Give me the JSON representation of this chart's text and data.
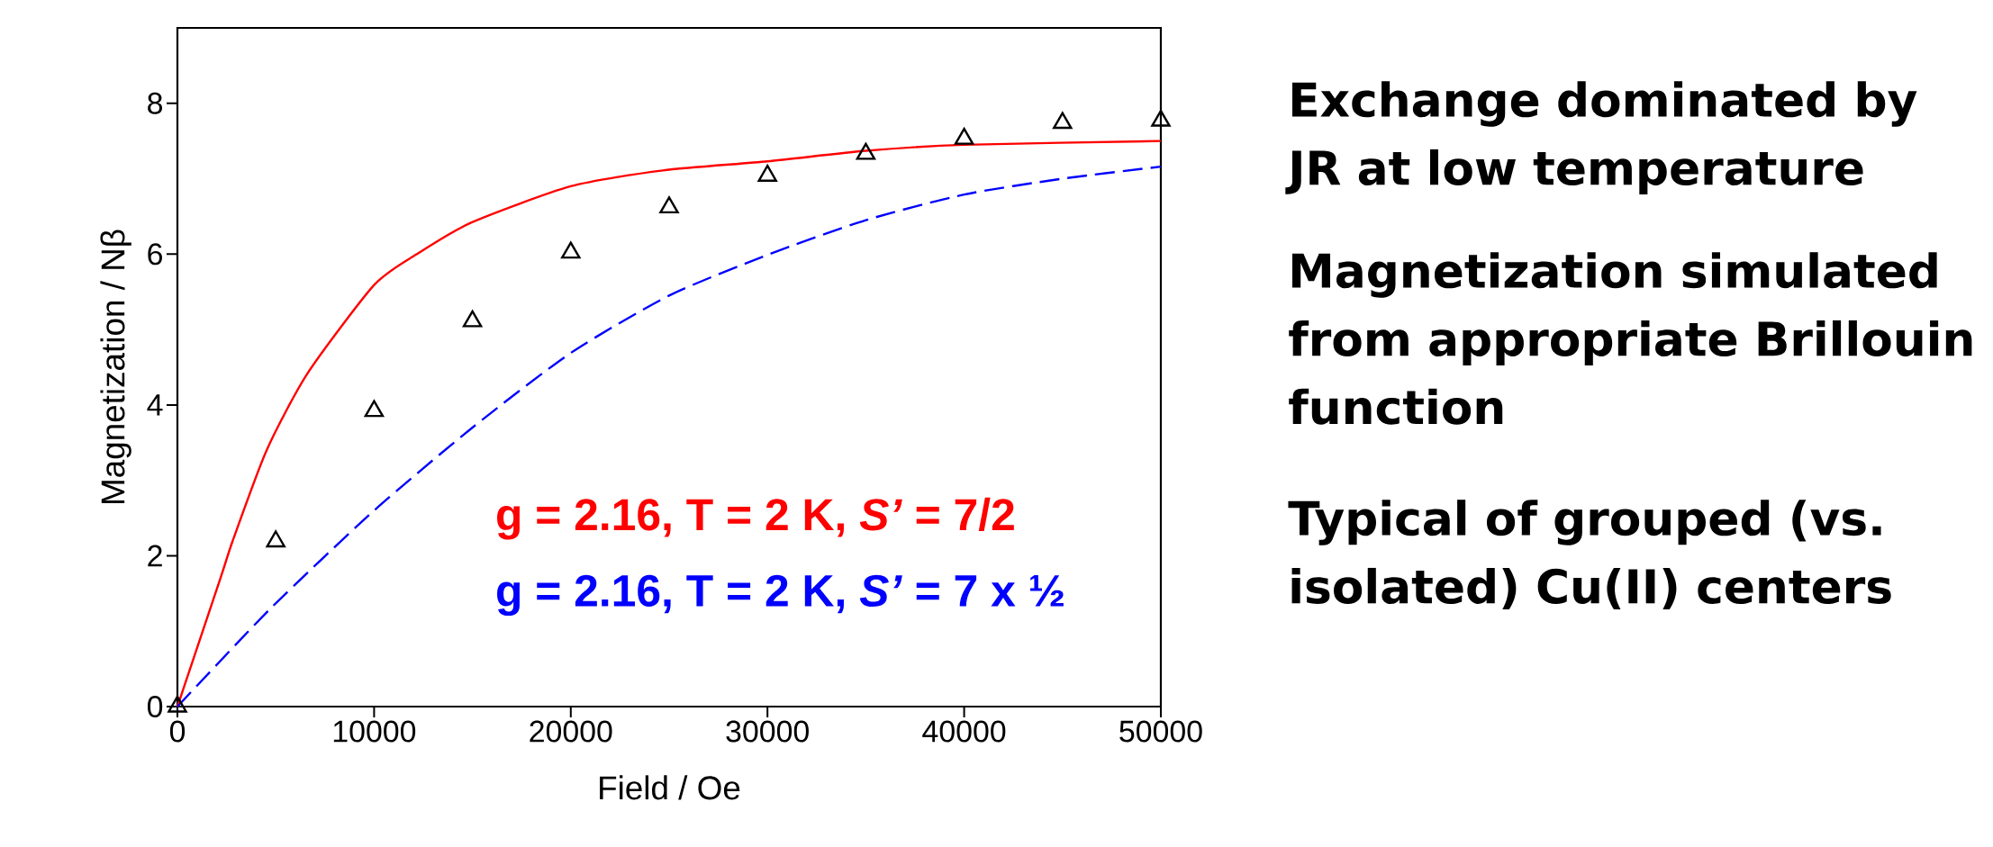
{
  "chart_data": {
    "type": "line",
    "xlabel": "Field / Oe",
    "ylabel": "Magnetization / Nβ",
    "xlim": [
      0,
      50000
    ],
    "ylim": [
      0,
      9
    ],
    "xticks": [
      0,
      10000,
      20000,
      30000,
      40000,
      50000
    ],
    "yticks": [
      0,
      2,
      4,
      6,
      8
    ],
    "grid": false,
    "series": [
      {
        "name": "g = 2.16, T = 2 K, *S’* = 7/2",
        "color": "#ff0000",
        "marker": "none",
        "line_style": "solid",
        "x": [
          0,
          2222,
          2800,
          4537,
          6620,
          10000,
          12176,
          14954,
          20000,
          24676,
          30000,
          35000,
          40000,
          50000
        ],
        "values": [
          0,
          1.73,
          2.19,
          3.4,
          4.42,
          5.59,
          6.0,
          6.42,
          6.9,
          7.11,
          7.23,
          7.37,
          7.45,
          7.5
        ]
      },
      {
        "name": "g = 2.16, T = 2 K, *S’* = 7 x ½",
        "color": "#0000ff",
        "marker": "none",
        "line_style": "dashed",
        "x": [
          0,
          4768,
          10000,
          15000,
          20000,
          25000,
          30000,
          35000,
          40000,
          45000,
          50000
        ],
        "values": [
          0,
          1.31,
          2.6,
          3.7,
          4.69,
          5.45,
          5.99,
          6.45,
          6.79,
          7.0,
          7.16
        ]
      },
      {
        "type": "scatter",
        "color": "#000000",
        "marker": "triangle",
        "x": [
          0,
          5000,
          10000,
          15000,
          20000,
          25000,
          30000,
          35000,
          40000,
          45000,
          50000
        ],
        "values": [
          0,
          2.19,
          3.92,
          5.11,
          6.02,
          6.62,
          7.04,
          7.33,
          7.53,
          7.74,
          7.77
        ]
      }
    ],
    "annotations": [
      "Exchange dominated by JR at low temperature",
      "Magnetization simulated from appropriate Brillouin function",
      "Typical of grouped (vs. isolated) Cu(II) centers"
    ]
  }
}
